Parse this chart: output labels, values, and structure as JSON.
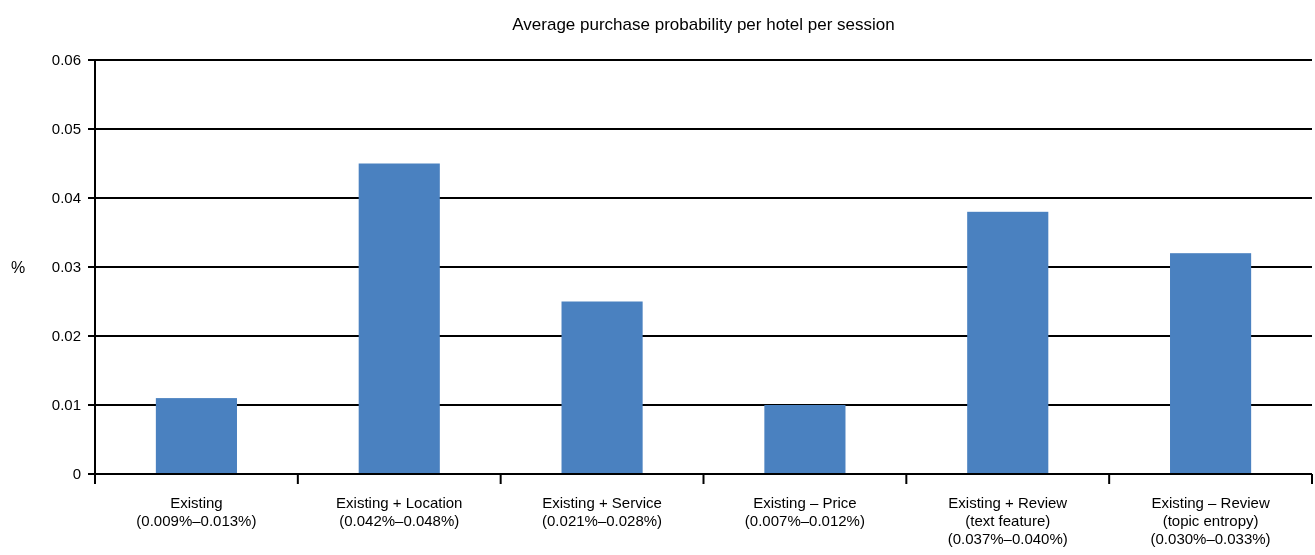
{
  "chart_data": {
    "type": "bar",
    "title": "Average purchase probability per hotel per session",
    "ylabel": "%",
    "categories": [
      "Existing\n(0.009%–0.013%)",
      "Existing + Location\n(0.042%–0.048%)",
      "Existing + Service\n(0.021%–0.028%)",
      "Existing – Price\n(0.007%–0.012%)",
      "Existing + Review\n(text feature)\n(0.037%–0.040%)",
      "Existing – Review\n(topic entropy)\n(0.030%–0.033%)"
    ],
    "values": [
      0.011,
      0.045,
      0.025,
      0.01,
      0.038,
      0.032
    ],
    "color": "#4a81c0",
    "ylim": [
      0,
      0.06
    ],
    "yticks": [
      0,
      0.01,
      0.02,
      0.03,
      0.04,
      0.05,
      0.06
    ],
    "grid": "y"
  }
}
